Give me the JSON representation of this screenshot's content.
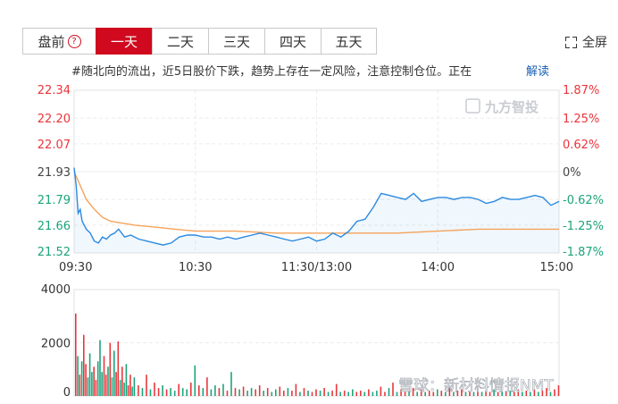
{
  "tabs": [
    {
      "label": "盘前",
      "active": false,
      "has_help": true
    },
    {
      "label": "一天",
      "active": true
    },
    {
      "label": "二天",
      "active": false
    },
    {
      "label": "三天",
      "active": false
    },
    {
      "label": "四天",
      "active": false
    },
    {
      "label": "五天",
      "active": false
    }
  ],
  "help_glyph": "?",
  "fullscreen_label": "全屏",
  "notice": {
    "text": "#随北向的流出，近5日股价下跌，趋势上存在一定风险，注意控制仓位。正在",
    "link": "解读"
  },
  "watermark": "九方智投",
  "footer_watermark": "雪球：新材料情报NMT",
  "colors": {
    "up": "#e8353b",
    "down": "#1ba37a",
    "price_line": "#2b8ae0",
    "avg_line": "#f5a35b",
    "axis_text_left": "#d12b2b"
  },
  "chart_data": [
    {
      "type": "line",
      "title": "",
      "x_ticks": [
        "09:30",
        "10:30",
        "11:30/13:00",
        "14:00",
        "15:00"
      ],
      "x_tick_minutes": [
        0,
        60,
        120,
        180,
        240
      ],
      "x_range": [
        0,
        240
      ],
      "ylim": [
        21.52,
        22.34
      ],
      "y_ticks": [
        "22.34",
        "22.20",
        "22.07",
        "21.93",
        "21.79",
        "21.66",
        "21.52"
      ],
      "y_tick_values": [
        22.34,
        22.2,
        22.07,
        21.93,
        21.79,
        21.66,
        21.52
      ],
      "pct_ticks": [
        "1.87%",
        "1.25%",
        "0.62%",
        "0%",
        "-0.62%",
        "-1.25%",
        "-1.87%"
      ],
      "prev_close": 21.93,
      "series": [
        {
          "key": "price",
          "x": [
            0,
            1,
            2,
            3,
            4,
            6,
            8,
            10,
            12,
            14,
            16,
            18,
            20,
            22,
            25,
            28,
            32,
            36,
            40,
            44,
            48,
            52,
            56,
            60,
            64,
            68,
            72,
            76,
            80,
            84,
            88,
            92,
            96,
            100,
            104,
            108,
            112,
            116,
            120,
            124,
            128,
            132,
            136,
            140,
            144,
            148,
            152,
            156,
            160,
            164,
            168,
            172,
            176,
            180,
            184,
            188,
            192,
            196,
            200,
            204,
            208,
            212,
            216,
            220,
            224,
            228,
            232,
            236,
            240
          ],
          "values": [
            21.95,
            21.86,
            21.72,
            21.74,
            21.68,
            21.64,
            21.62,
            21.58,
            21.57,
            21.6,
            21.59,
            21.61,
            21.62,
            21.64,
            21.6,
            21.61,
            21.59,
            21.58,
            21.57,
            21.56,
            21.57,
            21.6,
            21.61,
            21.61,
            21.6,
            21.6,
            21.59,
            21.6,
            21.59,
            21.6,
            21.61,
            21.62,
            21.61,
            21.6,
            21.59,
            21.58,
            21.59,
            21.6,
            21.58,
            21.59,
            21.62,
            21.6,
            21.63,
            21.68,
            21.69,
            21.75,
            21.82,
            21.81,
            21.8,
            21.79,
            21.82,
            21.78,
            21.79,
            21.8,
            21.8,
            21.79,
            21.8,
            21.8,
            21.79,
            21.77,
            21.78,
            21.8,
            21.79,
            21.79,
            21.8,
            21.81,
            21.8,
            21.76,
            21.78
          ]
        },
        {
          "key": "avg",
          "x": [
            0,
            3,
            6,
            10,
            14,
            18,
            24,
            30,
            40,
            50,
            60,
            80,
            100,
            120,
            140,
            160,
            180,
            200,
            220,
            240
          ],
          "values": [
            21.93,
            21.86,
            21.79,
            21.74,
            21.7,
            21.68,
            21.67,
            21.66,
            21.65,
            21.64,
            21.63,
            21.63,
            21.62,
            21.62,
            21.62,
            21.62,
            21.63,
            21.64,
            21.64,
            21.64
          ]
        }
      ]
    },
    {
      "type": "bar",
      "title": "",
      "ylim": [
        0,
        4000
      ],
      "y_ticks": [
        "4000",
        "2000",
        "0"
      ],
      "y_tick_values": [
        4000,
        2000,
        0
      ],
      "x_range": [
        0,
        240
      ],
      "bars": [
        {
          "x": 0,
          "v": 3100,
          "d": "up"
        },
        {
          "x": 1,
          "v": 1500,
          "d": "down"
        },
        {
          "x": 2,
          "v": 800,
          "d": "up"
        },
        {
          "x": 3,
          "v": 1300,
          "d": "down"
        },
        {
          "x": 4,
          "v": 2300,
          "d": "up"
        },
        {
          "x": 5,
          "v": 1200,
          "d": "up"
        },
        {
          "x": 6,
          "v": 700,
          "d": "down"
        },
        {
          "x": 7,
          "v": 1600,
          "d": "down"
        },
        {
          "x": 8,
          "v": 900,
          "d": "down"
        },
        {
          "x": 9,
          "v": 1100,
          "d": "up"
        },
        {
          "x": 10,
          "v": 600,
          "d": "up"
        },
        {
          "x": 11,
          "v": 1300,
          "d": "down"
        },
        {
          "x": 12,
          "v": 2100,
          "d": "down"
        },
        {
          "x": 13,
          "v": 900,
          "d": "down"
        },
        {
          "x": 14,
          "v": 1500,
          "d": "up"
        },
        {
          "x": 15,
          "v": 800,
          "d": "up"
        },
        {
          "x": 16,
          "v": 1100,
          "d": "down"
        },
        {
          "x": 17,
          "v": 2000,
          "d": "up"
        },
        {
          "x": 18,
          "v": 700,
          "d": "down"
        },
        {
          "x": 19,
          "v": 1700,
          "d": "down"
        },
        {
          "x": 20,
          "v": 900,
          "d": "up"
        },
        {
          "x": 21,
          "v": 2050,
          "d": "up"
        },
        {
          "x": 22,
          "v": 600,
          "d": "down"
        },
        {
          "x": 23,
          "v": 1100,
          "d": "up"
        },
        {
          "x": 24,
          "v": 500,
          "d": "down"
        },
        {
          "x": 25,
          "v": 1200,
          "d": "down"
        },
        {
          "x": 26,
          "v": 400,
          "d": "up"
        },
        {
          "x": 27,
          "v": 800,
          "d": "up"
        },
        {
          "x": 28,
          "v": 350,
          "d": "down"
        },
        {
          "x": 29,
          "v": 700,
          "d": "down"
        },
        {
          "x": 31,
          "v": 400,
          "d": "up"
        },
        {
          "x": 33,
          "v": 300,
          "d": "down"
        },
        {
          "x": 35,
          "v": 800,
          "d": "up"
        },
        {
          "x": 37,
          "v": 250,
          "d": "down"
        },
        {
          "x": 39,
          "v": 500,
          "d": "up"
        },
        {
          "x": 41,
          "v": 300,
          "d": "up"
        },
        {
          "x": 43,
          "v": 400,
          "d": "down"
        },
        {
          "x": 45,
          "v": 250,
          "d": "up"
        },
        {
          "x": 47,
          "v": 300,
          "d": "down"
        },
        {
          "x": 49,
          "v": 200,
          "d": "down"
        },
        {
          "x": 51,
          "v": 450,
          "d": "up"
        },
        {
          "x": 53,
          "v": 300,
          "d": "down"
        },
        {
          "x": 55,
          "v": 250,
          "d": "down"
        },
        {
          "x": 57,
          "v": 500,
          "d": "up"
        },
        {
          "x": 59,
          "v": 1150,
          "d": "down"
        },
        {
          "x": 61,
          "v": 400,
          "d": "up"
        },
        {
          "x": 63,
          "v": 300,
          "d": "down"
        },
        {
          "x": 65,
          "v": 700,
          "d": "up"
        },
        {
          "x": 67,
          "v": 250,
          "d": "down"
        },
        {
          "x": 69,
          "v": 400,
          "d": "down"
        },
        {
          "x": 71,
          "v": 300,
          "d": "up"
        },
        {
          "x": 73,
          "v": 450,
          "d": "down"
        },
        {
          "x": 75,
          "v": 200,
          "d": "up"
        },
        {
          "x": 77,
          "v": 900,
          "d": "down"
        },
        {
          "x": 79,
          "v": 300,
          "d": "up"
        },
        {
          "x": 81,
          "v": 250,
          "d": "down"
        },
        {
          "x": 83,
          "v": 350,
          "d": "up"
        },
        {
          "x": 85,
          "v": 200,
          "d": "down"
        },
        {
          "x": 87,
          "v": 300,
          "d": "down"
        },
        {
          "x": 89,
          "v": 250,
          "d": "up"
        },
        {
          "x": 91,
          "v": 400,
          "d": "up"
        },
        {
          "x": 93,
          "v": 200,
          "d": "down"
        },
        {
          "x": 95,
          "v": 300,
          "d": "up"
        },
        {
          "x": 97,
          "v": 150,
          "d": "down"
        },
        {
          "x": 99,
          "v": 250,
          "d": "down"
        },
        {
          "x": 101,
          "v": 350,
          "d": "up"
        },
        {
          "x": 103,
          "v": 200,
          "d": "up"
        },
        {
          "x": 105,
          "v": 300,
          "d": "down"
        },
        {
          "x": 107,
          "v": 200,
          "d": "up"
        },
        {
          "x": 109,
          "v": 450,
          "d": "up"
        },
        {
          "x": 111,
          "v": 150,
          "d": "down"
        },
        {
          "x": 113,
          "v": 300,
          "d": "up"
        },
        {
          "x": 115,
          "v": 200,
          "d": "down"
        },
        {
          "x": 117,
          "v": 150,
          "d": "up"
        },
        {
          "x": 119,
          "v": 250,
          "d": "up"
        },
        {
          "x": 121,
          "v": 200,
          "d": "down"
        },
        {
          "x": 123,
          "v": 300,
          "d": "up"
        },
        {
          "x": 125,
          "v": 150,
          "d": "down"
        },
        {
          "x": 127,
          "v": 200,
          "d": "up"
        },
        {
          "x": 129,
          "v": 450,
          "d": "up"
        },
        {
          "x": 131,
          "v": 150,
          "d": "down"
        },
        {
          "x": 133,
          "v": 200,
          "d": "up"
        },
        {
          "x": 135,
          "v": 150,
          "d": "down"
        },
        {
          "x": 137,
          "v": 250,
          "d": "down"
        },
        {
          "x": 139,
          "v": 150,
          "d": "up"
        },
        {
          "x": 141,
          "v": 200,
          "d": "up"
        },
        {
          "x": 143,
          "v": 150,
          "d": "down"
        },
        {
          "x": 145,
          "v": 250,
          "d": "up"
        },
        {
          "x": 147,
          "v": 150,
          "d": "down"
        },
        {
          "x": 149,
          "v": 200,
          "d": "down"
        },
        {
          "x": 151,
          "v": 350,
          "d": "up"
        },
        {
          "x": 153,
          "v": 150,
          "d": "up"
        },
        {
          "x": 155,
          "v": 300,
          "d": "down"
        },
        {
          "x": 157,
          "v": 500,
          "d": "up"
        },
        {
          "x": 159,
          "v": 150,
          "d": "down"
        },
        {
          "x": 161,
          "v": 250,
          "d": "up"
        },
        {
          "x": 163,
          "v": 150,
          "d": "up"
        },
        {
          "x": 165,
          "v": 200,
          "d": "down"
        },
        {
          "x": 167,
          "v": 300,
          "d": "up"
        },
        {
          "x": 169,
          "v": 150,
          "d": "down"
        },
        {
          "x": 171,
          "v": 250,
          "d": "up"
        },
        {
          "x": 173,
          "v": 150,
          "d": "down"
        },
        {
          "x": 175,
          "v": 200,
          "d": "up"
        },
        {
          "x": 177,
          "v": 150,
          "d": "up"
        },
        {
          "x": 179,
          "v": 250,
          "d": "down"
        },
        {
          "x": 181,
          "v": 200,
          "d": "up"
        },
        {
          "x": 183,
          "v": 150,
          "d": "down"
        },
        {
          "x": 185,
          "v": 300,
          "d": "up"
        },
        {
          "x": 187,
          "v": 150,
          "d": "down"
        },
        {
          "x": 189,
          "v": 200,
          "d": "up"
        },
        {
          "x": 191,
          "v": 250,
          "d": "up"
        },
        {
          "x": 193,
          "v": 150,
          "d": "down"
        },
        {
          "x": 195,
          "v": 200,
          "d": "up"
        },
        {
          "x": 197,
          "v": 150,
          "d": "down"
        },
        {
          "x": 199,
          "v": 250,
          "d": "up"
        },
        {
          "x": 201,
          "v": 150,
          "d": "down"
        },
        {
          "x": 203,
          "v": 200,
          "d": "up"
        },
        {
          "x": 205,
          "v": 150,
          "d": "up"
        },
        {
          "x": 207,
          "v": 250,
          "d": "down"
        },
        {
          "x": 209,
          "v": 150,
          "d": "up"
        },
        {
          "x": 211,
          "v": 200,
          "d": "down"
        },
        {
          "x": 213,
          "v": 150,
          "d": "up"
        },
        {
          "x": 215,
          "v": 200,
          "d": "down"
        },
        {
          "x": 217,
          "v": 150,
          "d": "up"
        },
        {
          "x": 219,
          "v": 250,
          "d": "up"
        },
        {
          "x": 221,
          "v": 150,
          "d": "down"
        },
        {
          "x": 223,
          "v": 200,
          "d": "up"
        },
        {
          "x": 225,
          "v": 150,
          "d": "down"
        },
        {
          "x": 227,
          "v": 250,
          "d": "up"
        },
        {
          "x": 229,
          "v": 150,
          "d": "down"
        },
        {
          "x": 231,
          "v": 200,
          "d": "up"
        },
        {
          "x": 233,
          "v": 300,
          "d": "up"
        },
        {
          "x": 235,
          "v": 150,
          "d": "down"
        },
        {
          "x": 237,
          "v": 250,
          "d": "up"
        },
        {
          "x": 239,
          "v": 400,
          "d": "up"
        }
      ]
    }
  ]
}
